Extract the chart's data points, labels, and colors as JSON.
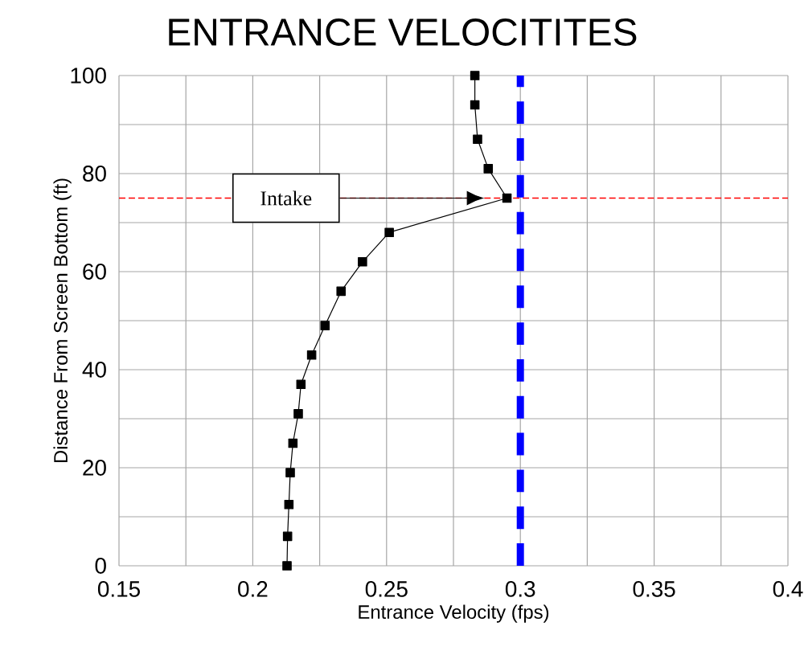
{
  "chart_data": {
    "type": "line",
    "title": "ENTRANCE VELOCITITES",
    "xlabel": "Entrance Velocity (fps)",
    "ylabel": "Distance From Screen Bottom (ft)",
    "xlim": [
      0.15,
      0.4
    ],
    "ylim": [
      0,
      100
    ],
    "xticks": [
      0.15,
      {
        "value": 0.175,
        "label": null
      },
      0.2,
      {
        "value": 0.225,
        "label": null
      },
      0.25,
      {
        "value": 0.275,
        "label": null
      },
      0.3,
      {
        "value": 0.325,
        "label": null
      },
      0.35,
      {
        "value": 0.375,
        "label": null
      },
      0.4
    ],
    "yticks": [
      0,
      {
        "value": 10,
        "label": null
      },
      20,
      {
        "value": 30,
        "label": null
      },
      40,
      {
        "value": 50,
        "label": null
      },
      60,
      {
        "value": 70,
        "label": null
      },
      80,
      {
        "value": 90,
        "label": null
      },
      100
    ],
    "grid": true,
    "marker": "square",
    "line_style": "solid",
    "series": [
      {
        "color": "#000000",
        "x": [
          0.283,
          0.283,
          0.284,
          0.288,
          0.295,
          0.251,
          0.241,
          0.233,
          0.227,
          0.222,
          0.218,
          0.217,
          0.215,
          0.214,
          0.2135,
          0.213,
          0.2128
        ],
        "values": [
          100,
          94,
          87,
          81,
          75,
          68,
          62,
          56,
          49,
          43,
          37,
          31,
          25,
          19,
          12.5,
          6,
          0
        ]
      }
    ],
    "ref_lines": [
      {
        "axis": "x",
        "value": 0.3,
        "color": "#0000ff",
        "line_style": "dashed"
      },
      {
        "axis": "y",
        "value": 75,
        "color": "#ff0000",
        "line_style": "dashed"
      }
    ],
    "annotations": [
      "Intake"
    ]
  }
}
